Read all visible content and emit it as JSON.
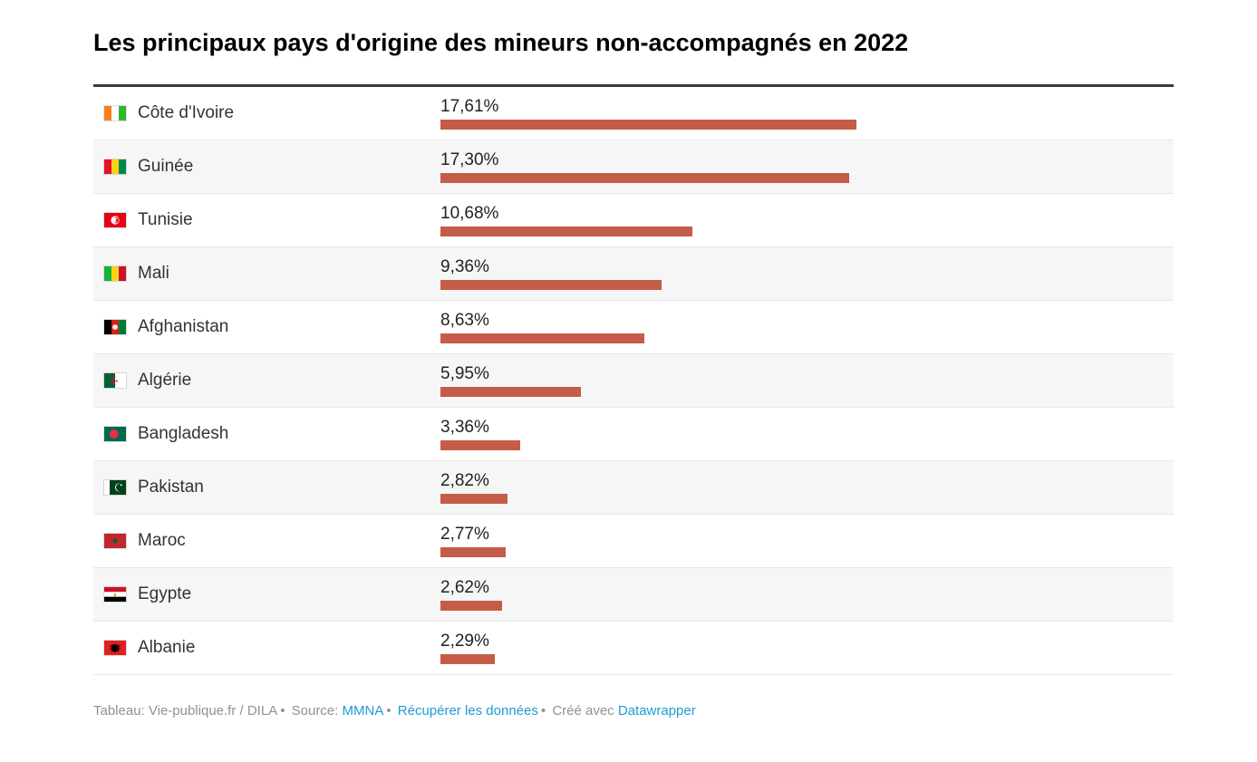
{
  "title": "Les principaux pays d'origine des mineurs non-accompagnés en 2022",
  "colors": {
    "bar": "#c45c48",
    "link": "#1d9bd7",
    "row_alt_background": "#f6f6f6",
    "table_top_rule": "#3a3a3a",
    "footer_text": "#919191",
    "title_text": "#000000"
  },
  "table": {
    "max_value": 17.61,
    "rows": [
      {
        "country": "Côte d'Ivoire",
        "flag": "civ",
        "flag_name": "flag-cote-divoire-icon",
        "value": 17.61,
        "value_label": "17,61%"
      },
      {
        "country": "Guinée",
        "flag": "gin",
        "flag_name": "flag-guinee-icon",
        "value": 17.3,
        "value_label": "17,30%"
      },
      {
        "country": "Tunisie",
        "flag": "tun",
        "flag_name": "flag-tunisie-icon",
        "value": 10.68,
        "value_label": "10,68%"
      },
      {
        "country": "Mali",
        "flag": "mli",
        "flag_name": "flag-mali-icon",
        "value": 9.36,
        "value_label": "9,36%"
      },
      {
        "country": "Afghanistan",
        "flag": "afg",
        "flag_name": "flag-afghanistan-icon",
        "value": 8.63,
        "value_label": "8,63%"
      },
      {
        "country": "Algérie",
        "flag": "dza",
        "flag_name": "flag-algerie-icon",
        "value": 5.95,
        "value_label": "5,95%"
      },
      {
        "country": "Bangladesh",
        "flag": "bgd",
        "flag_name": "flag-bangladesh-icon",
        "value": 3.36,
        "value_label": "3,36%"
      },
      {
        "country": "Pakistan",
        "flag": "pak",
        "flag_name": "flag-pakistan-icon",
        "value": 2.82,
        "value_label": "2,82%"
      },
      {
        "country": "Maroc",
        "flag": "mar",
        "flag_name": "flag-maroc-icon",
        "value": 2.77,
        "value_label": "2,77%"
      },
      {
        "country": "Egypte",
        "flag": "egy",
        "flag_name": "flag-egypte-icon",
        "value": 2.62,
        "value_label": "2,62%"
      },
      {
        "country": "Albanie",
        "flag": "alb",
        "flag_name": "flag-albanie-icon",
        "value": 2.29,
        "value_label": "2,29%"
      }
    ]
  },
  "footer": {
    "attribution": "Tableau: Vie-publique.fr / DILA",
    "separator": "•",
    "source_label": "Source:",
    "source_link": "MMNA",
    "data_link": "Récupérer les données",
    "created_label": "Créé avec",
    "created_link": "Datawrapper"
  },
  "chart_data": {
    "type": "bar",
    "orientation": "horizontal",
    "title": "Les principaux pays d'origine des mineurs non-accompagnés en 2022",
    "categories": [
      "Côte d'Ivoire",
      "Guinée",
      "Tunisie",
      "Mali",
      "Afghanistan",
      "Algérie",
      "Bangladesh",
      "Pakistan",
      "Maroc",
      "Egypte",
      "Albanie"
    ],
    "values": [
      17.61,
      17.3,
      10.68,
      9.36,
      8.63,
      5.95,
      3.36,
      2.82,
      2.77,
      2.62,
      2.29
    ],
    "value_labels": [
      "17,61%",
      "17,30%",
      "10,68%",
      "9,36%",
      "8,63%",
      "5,95%",
      "3,36%",
      "2,82%",
      "2,77%",
      "2,62%",
      "2,29%"
    ],
    "xlabel": "",
    "ylabel": "",
    "xlim": [
      0,
      17.61
    ],
    "unit": "%",
    "grid": false,
    "legend": false,
    "bar_color": "#c45c48"
  }
}
